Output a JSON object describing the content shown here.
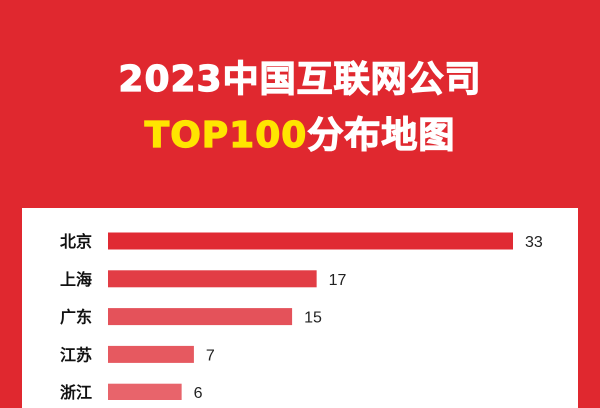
{
  "header": {
    "title_line1": "2023中国互联网公司",
    "title_line2_highlight": "TOP100",
    "title_line2_rest": "分布地图"
  },
  "colors": {
    "background": "#e0282f",
    "highlight": "#ffe500",
    "panel": "#ffffff",
    "bars": [
      "#e02a33",
      "#e23d45",
      "#e4525a",
      "#e65960",
      "#e8646b"
    ]
  },
  "chart_data": {
    "type": "bar",
    "orientation": "horizontal",
    "categories": [
      "北京",
      "上海",
      "广东",
      "江苏",
      "浙江"
    ],
    "values": [
      33,
      17,
      15,
      7,
      6
    ],
    "data_labels": true,
    "grid": false
  }
}
